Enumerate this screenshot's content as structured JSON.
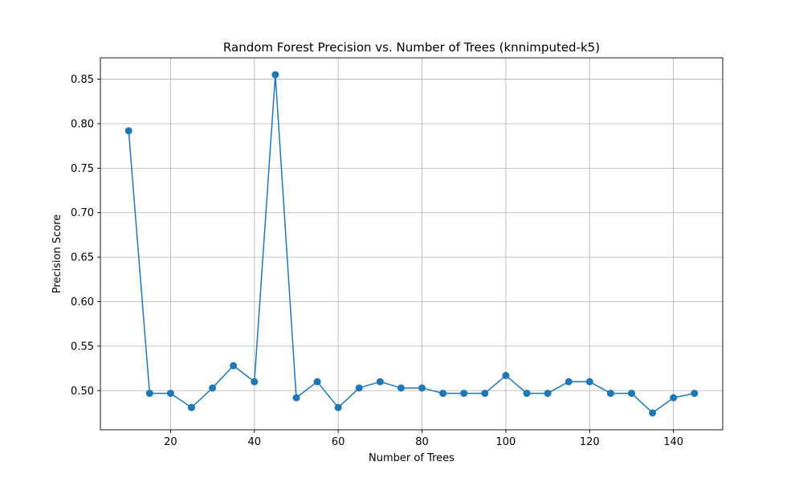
{
  "chart_data": {
    "type": "line",
    "title": "Random Forest Precision vs. Number of Trees (knnimputed-k5)",
    "xlabel": "Number of Trees",
    "ylabel": "Precision Score",
    "grid": true,
    "xlim": [
      3.25,
      151.75
    ],
    "ylim": [
      0.456,
      0.874
    ],
    "x_ticks": [
      20,
      40,
      60,
      80,
      100,
      120,
      140
    ],
    "y_ticks": [
      0.5,
      0.55,
      0.6,
      0.65,
      0.7,
      0.75,
      0.8,
      0.85
    ],
    "series": [
      {
        "color": "#1f77b4",
        "marker": "circle",
        "x": [
          10,
          15,
          20,
          25,
          30,
          35,
          40,
          45,
          50,
          55,
          60,
          65,
          70,
          75,
          80,
          85,
          90,
          95,
          100,
          105,
          110,
          115,
          120,
          125,
          130,
          135,
          140,
          145
        ],
        "y": [
          0.792,
          0.497,
          0.497,
          0.481,
          0.503,
          0.528,
          0.51,
          0.855,
          0.492,
          0.51,
          0.481,
          0.503,
          0.51,
          0.503,
          0.503,
          0.497,
          0.497,
          0.497,
          0.517,
          0.497,
          0.497,
          0.51,
          0.51,
          0.497,
          0.497,
          0.475,
          0.492,
          0.497
        ]
      }
    ]
  }
}
